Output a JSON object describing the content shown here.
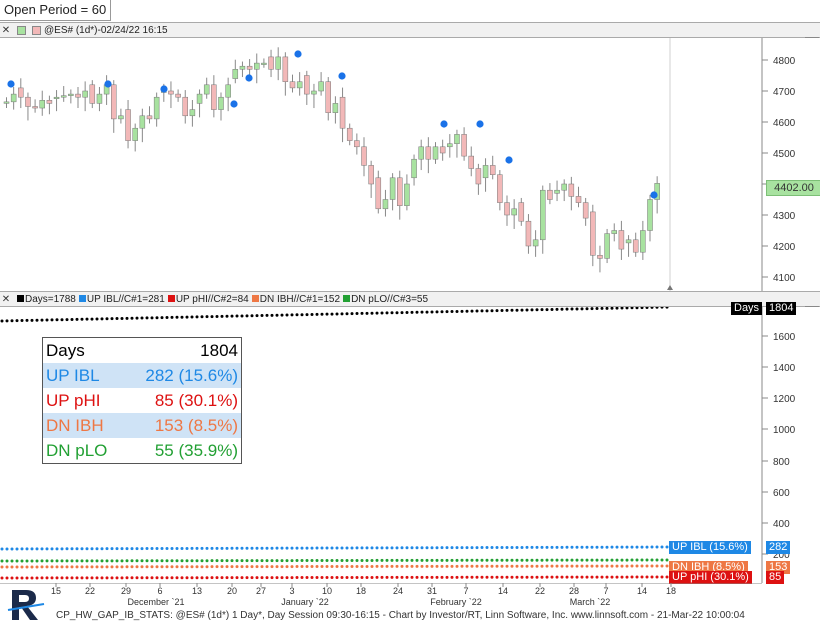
{
  "toolbar": {
    "open_period": "Open Period = 60"
  },
  "price_panel": {
    "title": "@ES# (1d*)-02/24/22 16:15",
    "last_price": "4402.00",
    "y_ticks": [
      "4800",
      "4700",
      "4600",
      "4500",
      "4400",
      "4300",
      "4200",
      "4100"
    ],
    "up_color": "#a8e2a0",
    "down_color": "#f2b8b8",
    "marker_color": "#1a72e8"
  },
  "stats_panel": {
    "legend": [
      {
        "label": "Days=1788",
        "color": "#000000"
      },
      {
        "label": "UP IBL//C#1=281",
        "color": "#1e88e5"
      },
      {
        "label": "UP pHI//C#2=84",
        "color": "#dd1111"
      },
      {
        "label": "DN IBH//C#1=152",
        "color": "#ee7744"
      },
      {
        "label": "DN pLO//C#3=55",
        "color": "#22a033"
      }
    ],
    "y_ticks": [
      "1600",
      "1400",
      "1200",
      "1000",
      "800",
      "600",
      "400",
      "200"
    ],
    "days_badge": "Days",
    "days_value": "1804",
    "badges": [
      {
        "label": "UP IBL (15.6%)",
        "value": "282",
        "color": "#1e88e5"
      },
      {
        "label": "DN IBH (8.5%)",
        "value": "153",
        "color": "#ee7744"
      },
      {
        "label": "UP pHI (30.1%)",
        "value": "85",
        "color": "#dd1111"
      }
    ]
  },
  "stats_table": [
    {
      "label": "Days",
      "value": "1804",
      "color": "#000000",
      "shaded": false
    },
    {
      "label": "UP IBL",
      "value": "282 (15.6%)",
      "color": "#1e88e5",
      "shaded": true
    },
    {
      "label": "UP pHI",
      "value": "85 (30.1%)",
      "color": "#dd1111",
      "shaded": false
    },
    {
      "label": "DN IBH",
      "value": "153 (8.5%)",
      "color": "#ee7744",
      "shaded": true
    },
    {
      "label": "DN pLO",
      "value": "55 (35.9%)",
      "color": "#22a033",
      "shaded": false
    }
  ],
  "x_axis": {
    "ticks": [
      "15",
      "22",
      "29",
      "6",
      "13",
      "20",
      "27",
      "3",
      "10",
      "18",
      "24",
      "31",
      "7",
      "14",
      "22",
      "28",
      "7",
      "14",
      "18"
    ],
    "months": [
      "December `21",
      "January `22",
      "February `22",
      "March `22"
    ]
  },
  "footer": "CP_HW_GAP_IB_STATS: @ES# (1d*) 1 Day*, Day Session 09:30-16:15 - Chart by Investor/RT, Linn Software, Inc. www.linnsoft.com - 21-Mar-22 10:00:04"
}
